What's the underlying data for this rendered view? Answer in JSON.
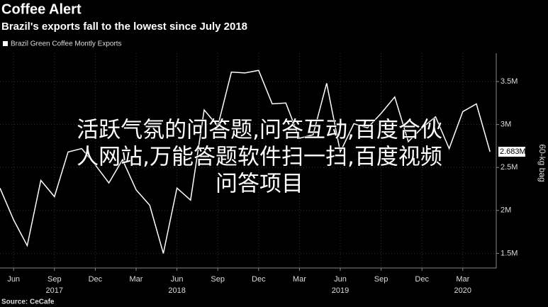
{
  "chart_data": {
    "type": "line",
    "title": "Coffee Alert",
    "subtitle": "Brazil's exports fall to the lowest since July 2018",
    "y_axis_label": "60-kg bag",
    "source": "Source: CeCafe",
    "overlay_text": [
      "活跃气氛的问答题,问答互动,百度合伙",
      "人网站,万能答题软件扫一扫,百度视频",
      "问答项目"
    ],
    "categories": [
      null,
      "Jun",
      null,
      null,
      "Sep",
      null,
      null,
      "Dec",
      null,
      null,
      "Mar",
      null,
      null,
      "Jun",
      null,
      null,
      "Sep",
      null,
      null,
      "Dec",
      null,
      null,
      "Mar",
      null,
      null,
      "Jun",
      null,
      null,
      "Sep",
      null,
      null,
      "Dec",
      null,
      null,
      "Mar",
      null,
      null
    ],
    "year_labels": [
      null,
      null,
      null,
      null,
      "2017",
      null,
      null,
      null,
      null,
      null,
      null,
      null,
      null,
      "2018",
      null,
      null,
      null,
      null,
      null,
      null,
      null,
      null,
      null,
      null,
      null,
      "2019",
      null,
      null,
      null,
      null,
      null,
      null,
      null,
      null,
      "2020",
      null,
      null
    ],
    "series": [
      {
        "name": "Brazil Green Coffee Montly Exports",
        "color": "#ffffff",
        "values": [
          2.26,
          1.89,
          1.59,
          2.35,
          2.16,
          2.68,
          2.72,
          2.53,
          2.32,
          2.59,
          2.24,
          2.06,
          1.5,
          2.26,
          2.12,
          3.17,
          2.98,
          3.61,
          3.6,
          3.63,
          3.24,
          3.25,
          2.84,
          2.88,
          3.48,
          2.68,
          3.01,
          2.96,
          3.13,
          3.32,
          2.8,
          2.96,
          3.09,
          2.72,
          3.15,
          3.24,
          2.683
        ],
        "value_labels": [
          null,
          null,
          null,
          null,
          null,
          null,
          null,
          null,
          null,
          null,
          null,
          null,
          null,
          null,
          null,
          null,
          null,
          null,
          null,
          null,
          null,
          null,
          null,
          null,
          null,
          null,
          null,
          null,
          null,
          null,
          null,
          null,
          null,
          null,
          null,
          null,
          "2.683M"
        ]
      }
    ],
    "ylim": [
      1.33,
      3.83
    ],
    "yticks": [
      {
        "value": 1.5,
        "label": "1.5M"
      },
      {
        "value": 2,
        "label": "2M"
      },
      {
        "value": 2.5,
        "label": "2.5M"
      },
      {
        "value": 3,
        "label": "3M"
      },
      {
        "value": 3.5,
        "label": "3.5M"
      }
    ],
    "grid": true
  }
}
